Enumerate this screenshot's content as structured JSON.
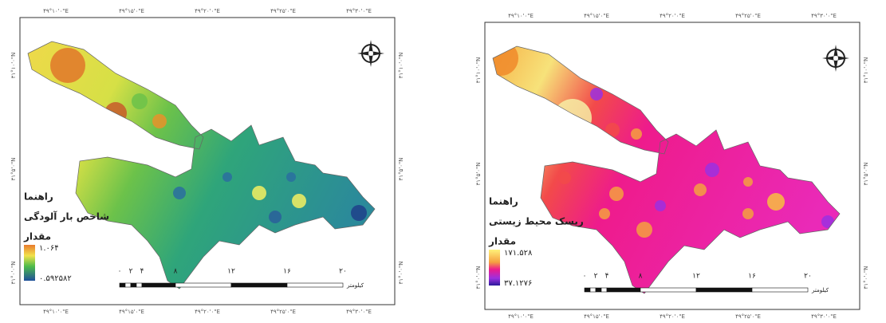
{
  "panels": [
    {
      "legend": {
        "title": "راهنما",
        "subtitle": "شاخص بار آلودگی",
        "value_label": "مقدار",
        "max": "۱.۰۶۴",
        "min": "۰.۵۹۲۵۸۲"
      },
      "scale": {
        "ticks": [
          "۰",
          "۲",
          "۴",
          "۸",
          "۱۲",
          "۱۶",
          "۲۰"
        ],
        "unit": "کیلومتر"
      },
      "top_coords": [
        "۴۹°۱۰'۰\"E",
        "۴۹°۱۵'۰\"E",
        "۴۹°۲۰'۰\"E",
        "۴۹°۲۵'۰\"E",
        "۴۹°۳۰'۰\"E"
      ],
      "bottom_coords": [
        "۴۹°۱۰'۰\"E",
        "۴۹°۱۵'۰\"E",
        "۴۹°۲۰'۰\"E",
        "۴۹°۲۵'۰\"E",
        "۴۹°۳۰'۰\"E"
      ],
      "left_coords": [
        "۳۱°۱۰'۰\"N",
        "۳۱°۵'۰\"N",
        "۳۱°۰'۰\"N"
      ],
      "right_coords": [
        "۳۱°۱۰'۰\"N",
        "۳۱°۵'۰\"N",
        "۳۱°۰'۰\"N"
      ]
    },
    {
      "legend": {
        "title": "راهنما",
        "subtitle": "ریسک محیط زیستی",
        "value_label": "مقدار",
        "max": "۱۷۱.۵۲۸",
        "min": "۳۷.۱۲۷۶"
      },
      "scale": {
        "ticks": [
          "۰",
          "۲",
          "۴",
          "۸",
          "۱۲",
          "۱۶",
          "۲۰"
        ],
        "unit": "کیلومتر"
      },
      "top_coords": [
        "۴۹°۱۰'۰\"E",
        "۴۹°۱۵'۰\"E",
        "۴۹°۲۰'۰\"E",
        "۴۹°۲۵'۰\"E",
        "۴۹°۳۰'۰\"E"
      ],
      "bottom_coords": [
        "۴۹°۱۰'۰\"E",
        "۴۹°۱۵'۰\"E",
        "۴۹°۲۰'۰\"E",
        "۴۹°۲۵'۰\"E",
        "۴۹°۳۰'۰\"E"
      ],
      "left_coords": [
        "۳۱°۱۰'۰\"N",
        "۳۱°۵'۰\"N",
        "۳۱°۰'۰\"N"
      ],
      "right_coords": [
        "۳۱°۱۰'۰\"N",
        "۳۱°۵'۰\"N",
        "۳۱°۰'۰\"N"
      ]
    }
  ]
}
